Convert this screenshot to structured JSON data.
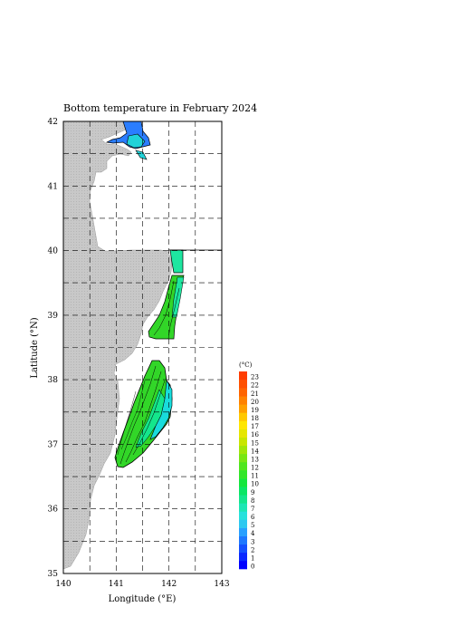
{
  "map": {
    "title": "Bottom temperature in February 2024",
    "xlabel": "Longitude (°E)",
    "ylabel": "Latitude (°N)",
    "lon_range": [
      140,
      143
    ],
    "lat_range": [
      35,
      42
    ],
    "x_ticks": [
      "140",
      "141",
      "142",
      "143"
    ],
    "y_ticks": [
      "35",
      "36",
      "37",
      "38",
      "39",
      "40",
      "41",
      "42"
    ],
    "grid": "dashed every 0.5°",
    "land_color": "#c8c8c8"
  },
  "colorbar": {
    "unit": "(°C)",
    "labels": [
      "0",
      "1",
      "2",
      "3",
      "4",
      "5",
      "6",
      "7",
      "8",
      "9",
      "10",
      "11",
      "12",
      "13",
      "14",
      "15",
      "16",
      "17",
      "18",
      "19",
      "20",
      "21",
      "22",
      "23"
    ],
    "colors": [
      "#0000ff",
      "#0a28ff",
      "#1450ff",
      "#1e78ff",
      "#28a0ff",
      "#2dc8f0",
      "#28e1dc",
      "#1ee6b4",
      "#14e68c",
      "#0ae664",
      "#14e63c",
      "#32e628",
      "#50e61e",
      "#78e614",
      "#a0e60a",
      "#c8e600",
      "#e6e600",
      "#ffe600",
      "#ffc800",
      "#ffa000",
      "#ff8200",
      "#ff6400",
      "#ff5000",
      "#ff3c00"
    ]
  }
}
